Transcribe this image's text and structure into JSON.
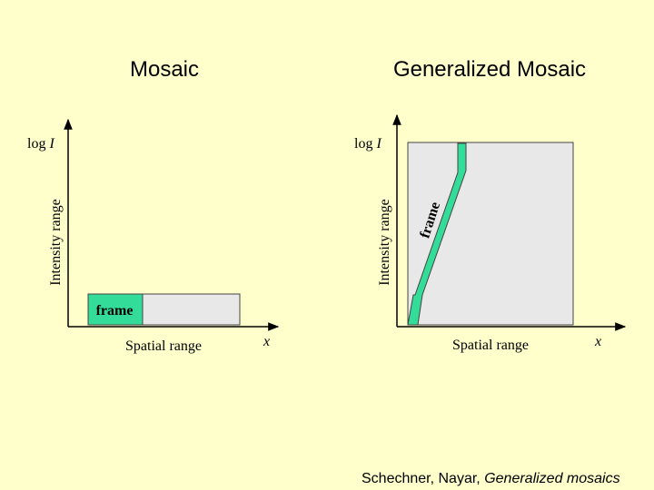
{
  "left": {
    "title": "Mosaic",
    "y_label_func": "log",
    "y_label_var": "I",
    "y_axis_title": "Intensity range",
    "x_label": "Spatial range",
    "x_symbol": "x",
    "frame_label": "frame"
  },
  "right": {
    "title": "Generalized Mosaic",
    "y_label_func": "log",
    "y_label_var": "I",
    "y_axis_title": "Intensity range",
    "x_label": "Spatial range",
    "x_symbol": "x",
    "frame_label": "frame"
  },
  "footer": {
    "authors": "Schechner, Nayar,",
    "work": "Generalized mosaics"
  }
}
